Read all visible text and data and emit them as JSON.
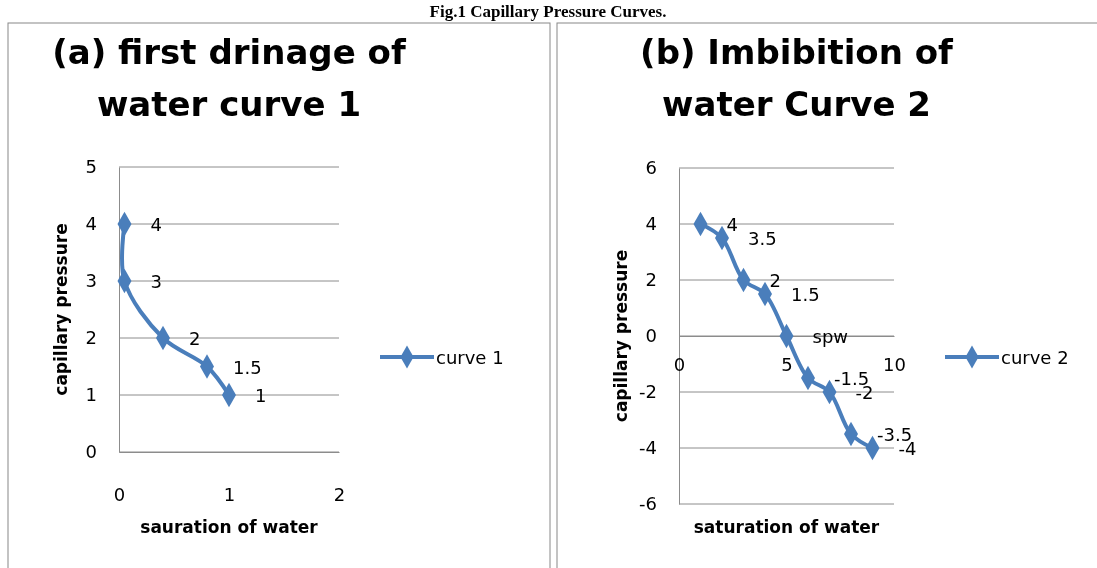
{
  "chart_data": [
    {
      "type": "line",
      "title": "(a) first drinage of water curve 1",
      "xlabel": "sauration of water",
      "ylabel": "capillary pressure",
      "annotations": [
        "Fig.1 Capillary Pressure Curves."
      ],
      "x": [
        0.05,
        0.05,
        0.4,
        0.8,
        1
      ],
      "series": [
        {
          "name": "curve 1",
          "color": "#4a7ebb",
          "values": [
            4,
            3,
            2,
            1.5,
            1
          ]
        }
      ],
      "xlim": [
        0,
        2
      ],
      "xticks": [
        0,
        1,
        2
      ],
      "ylim": [
        0,
        5
      ],
      "yticks": [
        0,
        1,
        2,
        3,
        4,
        5
      ],
      "grid": "y",
      "legend": "right",
      "marker": "diamond",
      "data_labels": true
    },
    {
      "type": "line",
      "title": "(b) Imbibition of water Curve 2",
      "xlabel": "saturation of water",
      "ylabel": "capillary pressure",
      "x": [
        1,
        2,
        3,
        4,
        5,
        6,
        7,
        8,
        9
      ],
      "series": [
        {
          "name": "curve 2",
          "color": "#4a7ebb",
          "values": [
            4,
            3.5,
            2,
            1.5,
            0,
            -1.5,
            -2,
            -3.5,
            -4
          ],
          "value_labels": [
            "4",
            "3.5",
            "2",
            "1.5",
            "spw",
            "-1.5",
            "-2",
            "-3.5",
            "-4"
          ]
        }
      ],
      "xlim": [
        0,
        10
      ],
      "xticks": [
        0,
        5,
        10
      ],
      "ylim": [
        -6,
        6
      ],
      "yticks": [
        -6,
        -4,
        -2,
        0,
        2,
        4,
        6
      ],
      "grid": "y",
      "legend": "right",
      "marker": "diamond"
    }
  ]
}
